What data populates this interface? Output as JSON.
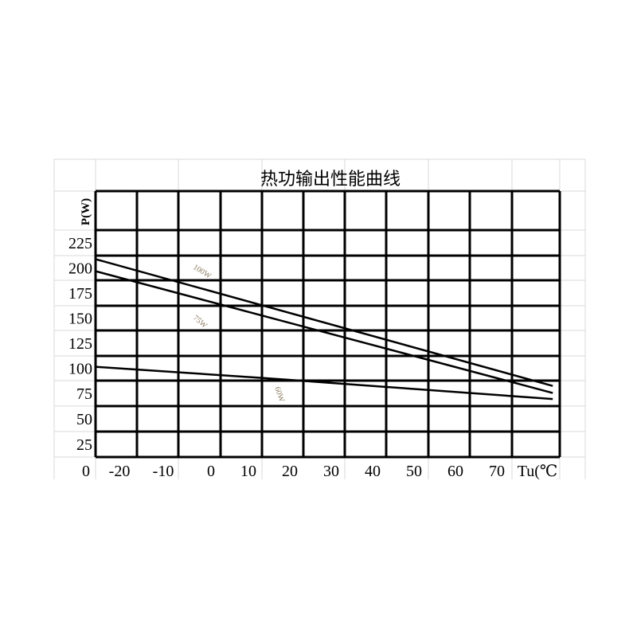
{
  "chart_data": {
    "type": "line",
    "title": "热功输出性能曲线",
    "ylabel": "P(W)",
    "xlabel": "Tu(℃",
    "y_origin_label": "0",
    "yticks": [
      "225",
      "200",
      "175",
      "150",
      "125",
      "100",
      "75",
      "50",
      "25"
    ],
    "xticks": [
      "-20",
      "-10",
      "0",
      "10",
      "20",
      "30",
      "40",
      "50",
      "60",
      "70"
    ],
    "grid": true,
    "series": [
      {
        "name": "100W",
        "x": [
          -25,
          85
        ],
        "y": [
          209,
          83
        ]
      },
      {
        "name": "75W",
        "x": [
          -25,
          85
        ],
        "y": [
          197,
          76
        ]
      },
      {
        "name": "60W",
        "x": [
          -25,
          15,
          45,
          75,
          85
        ],
        "y": [
          102,
          91,
          82,
          73,
          70
        ]
      }
    ],
    "colors": {
      "grid": "#000000",
      "sheet_grid": "#d9d9d9",
      "curve_label": "#8a7a60"
    }
  }
}
